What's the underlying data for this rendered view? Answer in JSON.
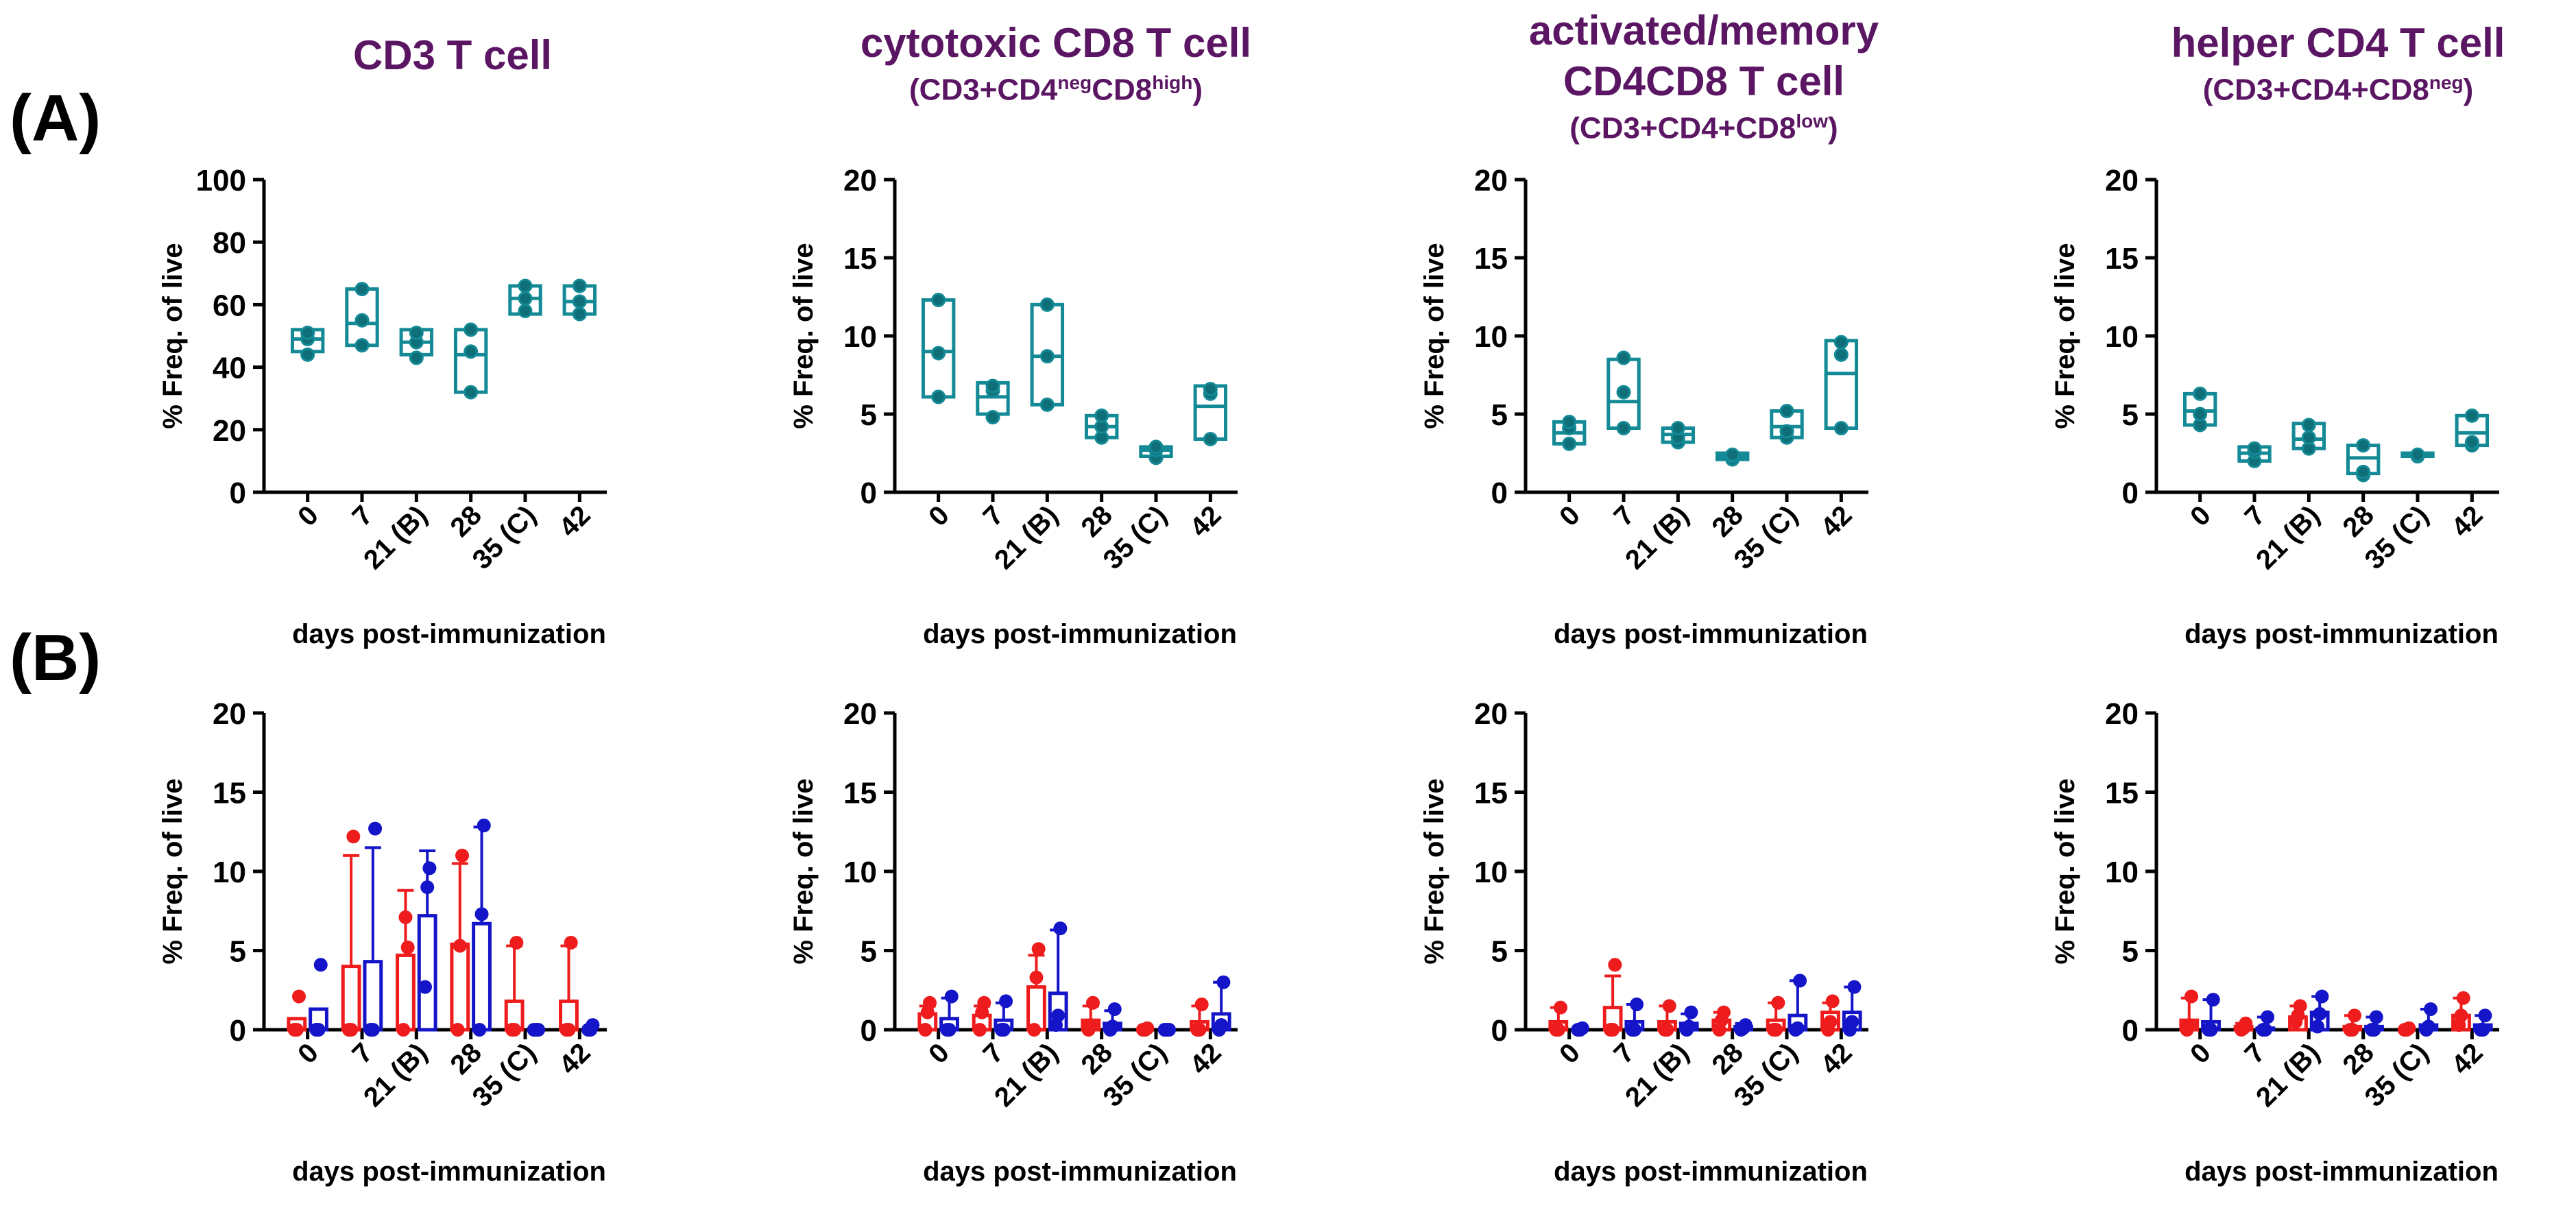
{
  "panel_labels": [
    "(A)",
    "(B)"
  ],
  "panel_titles": [
    {
      "main": "CD3 T cell",
      "sub": null
    },
    {
      "main": "cytotoxic CD8 T cell",
      "sub": {
        "pre": "(CD3+CD4",
        "sup1": "neg",
        "mid": "CD8",
        "sup2": "high",
        "post": ")"
      }
    },
    {
      "main": "activated/memory",
      "main2": "CD4CD8 T cell",
      "sub": {
        "pre": "(CD3+CD4+CD8",
        "sup1": "low",
        "mid": "",
        "sup2": "",
        "post": ")"
      }
    },
    {
      "main": "helper CD4 T cell",
      "sub": {
        "pre": "(CD3+CD4+CD8",
        "sup1": "neg",
        "mid": "",
        "sup2": "",
        "post": ")"
      }
    }
  ],
  "colors": {
    "title": "#5b1663",
    "teal": "#138a96",
    "red": "#ee1c1c",
    "blue": "#1414c8",
    "axis": "#000000"
  },
  "chart_data": [
    {
      "id": "A1",
      "type": "box",
      "row": "A",
      "title": "CD3 T cell",
      "ylabel": "% Freq. of live",
      "xlabel": "days post-immunization",
      "ylim": [
        0,
        100
      ],
      "yticks": [
        0,
        20,
        40,
        60,
        80,
        100
      ],
      "categories": [
        "0",
        "7",
        "21 (B)",
        "28",
        "35 (C)",
        "42"
      ],
      "series": [
        {
          "name": "CD3 T cell",
          "color": "#138a96",
          "boxes": [
            {
              "min": 45,
              "median": 49,
              "max": 52
            },
            {
              "min": 47,
              "median": 54,
              "max": 65
            },
            {
              "min": 44,
              "median": 48,
              "max": 52
            },
            {
              "min": 32,
              "median": 44,
              "max": 52
            },
            {
              "min": 57,
              "median": 62,
              "max": 66
            },
            {
              "min": 57,
              "median": 61,
              "max": 66
            }
          ],
          "points": [
            [
              44,
              49,
              51
            ],
            [
              47,
              55,
              65
            ],
            [
              43,
              48,
              51
            ],
            [
              32,
              45,
              52
            ],
            [
              58,
              62,
              66
            ],
            [
              57,
              61,
              66
            ]
          ]
        }
      ]
    },
    {
      "id": "A2",
      "type": "box",
      "row": "A",
      "title": "cytotoxic CD8 T cell",
      "ylabel": "% Freq. of live",
      "xlabel": "days post-immunization",
      "ylim": [
        0,
        20
      ],
      "yticks": [
        0,
        5,
        10,
        15,
        20
      ],
      "categories": [
        "0",
        "7",
        "21 (B)",
        "28",
        "35 (C)",
        "42"
      ],
      "series": [
        {
          "name": "cytotoxic CD8 T cell",
          "color": "#138a96",
          "boxes": [
            {
              "min": 6.1,
              "median": 9,
              "max": 12.3
            },
            {
              "min": 5,
              "median": 6.1,
              "max": 7
            },
            {
              "min": 5.6,
              "median": 8.7,
              "max": 12
            },
            {
              "min": 3.5,
              "median": 4.2,
              "max": 4.9
            },
            {
              "min": 2.3,
              "median": 2.7,
              "max": 2.9
            },
            {
              "min": 3.4,
              "median": 5.5,
              "max": 6.8
            }
          ],
          "points": [
            [
              6.1,
              8.9,
              12.3
            ],
            [
              4.8,
              6.5,
              6.8
            ],
            [
              5.6,
              8.7,
              12
            ],
            [
              3.5,
              4.2,
              4.9
            ],
            [
              2.2,
              2.7,
              2.9
            ],
            [
              3.4,
              6.3,
              6.6
            ]
          ]
        }
      ]
    },
    {
      "id": "A3",
      "type": "box",
      "row": "A",
      "title": "activated/memory CD4CD8 T cell",
      "ylabel": "% Freq. of live",
      "xlabel": "days post-immunization",
      "ylim": [
        0,
        20
      ],
      "yticks": [
        0,
        5,
        10,
        15,
        20
      ],
      "categories": [
        "0",
        "7",
        "21 (B)",
        "28",
        "35 (C)",
        "42"
      ],
      "series": [
        {
          "name": "activated/memory CD4CD8 T cell",
          "color": "#138a96",
          "boxes": [
            {
              "min": 3.1,
              "median": 3.8,
              "max": 4.5
            },
            {
              "min": 4.1,
              "median": 5.8,
              "max": 8.5
            },
            {
              "min": 3.2,
              "median": 3.7,
              "max": 4.1
            },
            {
              "min": 2.1,
              "median": 2.3,
              "max": 2.5
            },
            {
              "min": 3.5,
              "median": 4.2,
              "max": 5.2
            },
            {
              "min": 4.1,
              "median": 7.6,
              "max": 9.7
            }
          ],
          "points": [
            [
              3.1,
              4.1,
              4.5
            ],
            [
              4.1,
              6.4,
              8.6
            ],
            [
              3.2,
              3.5,
              4.1
            ],
            [
              2.1,
              2.3,
              2.4
            ],
            [
              3.5,
              3.9,
              5.2
            ],
            [
              4.1,
              8.8,
              9.6
            ]
          ]
        }
      ]
    },
    {
      "id": "A4",
      "type": "box",
      "row": "A",
      "title": "helper CD4 T cell",
      "ylabel": "% Freq. of live",
      "xlabel": "days post-immunization",
      "ylim": [
        0,
        20
      ],
      "yticks": [
        0,
        5,
        10,
        15,
        20
      ],
      "categories": [
        "0",
        "7",
        "21 (B)",
        "28",
        "35 (C)",
        "42"
      ],
      "series": [
        {
          "name": "helper CD4 T cell",
          "color": "#138a96",
          "boxes": [
            {
              "min": 4.3,
              "median": 5.2,
              "max": 6.3
            },
            {
              "min": 2,
              "median": 2.5,
              "max": 2.9
            },
            {
              "min": 2.8,
              "median": 3.4,
              "max": 4.4
            },
            {
              "min": 1.2,
              "median": 2.2,
              "max": 3
            },
            {
              "min": 2.3,
              "median": 2.4,
              "max": 2.5
            },
            {
              "min": 3,
              "median": 3.8,
              "max": 4.9
            }
          ],
          "points": [
            [
              4.3,
              5,
              6.3
            ],
            [
              2,
              2.6,
              2.8
            ],
            [
              2.8,
              3.5,
              4.3
            ],
            [
              1.1,
              1.3,
              3
            ],
            [
              2.3,
              2.4,
              2.4
            ],
            [
              3,
              3.2,
              4.9
            ]
          ]
        }
      ]
    },
    {
      "id": "B1",
      "type": "bar",
      "row": "B",
      "ylabel": "% Freq. of live",
      "xlabel": "days post-immunization",
      "ylim": [
        0,
        20
      ],
      "yticks": [
        0,
        5,
        10,
        15,
        20
      ],
      "categories": [
        "0",
        "7",
        "21 (B)",
        "28",
        "35 (C)",
        "42"
      ],
      "series": [
        {
          "name": "red",
          "color": "#ee1c1c",
          "values": [
            0.7,
            4,
            4.7,
            5.4,
            1.8,
            1.8
          ],
          "err": [
            0,
            11,
            8.8,
            10.5,
            5.3,
            5.3
          ],
          "points": [
            [
              0,
              0,
              2.1
            ],
            [
              0,
              0,
              12.2
            ],
            [
              0,
              7.1,
              5.2
            ],
            [
              0,
              5.3,
              11
            ],
            [
              0,
              0,
              5.5
            ],
            [
              0,
              0,
              5.5
            ]
          ]
        },
        {
          "name": "blue",
          "color": "#1414c8",
          "values": [
            1.3,
            4.3,
            7.2,
            6.7,
            0,
            0
          ],
          "err": [
            1.3,
            11.5,
            11.3,
            12.8,
            0,
            0
          ],
          "points": [
            [
              0,
              0,
              4.1
            ],
            [
              0,
              0,
              12.7
            ],
            [
              2.7,
              9,
              10.2
            ],
            [
              0,
              7.3,
              12.9
            ],
            [
              0,
              0,
              0
            ],
            [
              0,
              0,
              0.3
            ]
          ]
        }
      ]
    },
    {
      "id": "B2",
      "type": "bar",
      "row": "B",
      "ylabel": "% Freq. of live",
      "xlabel": "days post-immunization",
      "ylim": [
        0,
        20
      ],
      "yticks": [
        0,
        5,
        10,
        15,
        20
      ],
      "categories": [
        "0",
        "7",
        "21 (B)",
        "28",
        "35 (C)",
        "42"
      ],
      "series": [
        {
          "name": "red",
          "color": "#ee1c1c",
          "values": [
            1,
            0.9,
            2.7,
            0.6,
            0,
            0.5
          ],
          "err": [
            1.5,
            1.5,
            4.7,
            1.5,
            0,
            1.5
          ],
          "points": [
            [
              0,
              1.1,
              1.7
            ],
            [
              0,
              1.1,
              1.7
            ],
            [
              0,
              3.3,
              5.1
            ],
            [
              0,
              0.3,
              1.7
            ],
            [
              0,
              0,
              0.1
            ],
            [
              0,
              0,
              1.6
            ]
          ]
        },
        {
          "name": "blue",
          "color": "#1414c8",
          "values": [
            0.7,
            0.6,
            2.3,
            0.4,
            0,
            1
          ],
          "err": [
            2,
            1.7,
            6.3,
            1.2,
            0,
            3
          ],
          "points": [
            [
              0,
              0,
              2.1
            ],
            [
              0,
              0,
              1.8
            ],
            [
              0.3,
              0.9,
              6.4
            ],
            [
              0,
              0.2,
              1.3
            ],
            [
              0,
              0,
              0
            ],
            [
              0,
              0.3,
              3
            ]
          ]
        }
      ]
    },
    {
      "id": "B3",
      "type": "bar",
      "row": "B",
      "ylabel": "% Freq. of live",
      "xlabel": "days post-immunization",
      "ylim": [
        0,
        20
      ],
      "yticks": [
        0,
        5,
        10,
        15,
        20
      ],
      "categories": [
        "0",
        "7",
        "21 (B)",
        "28",
        "35 (C)",
        "42"
      ],
      "series": [
        {
          "name": "red",
          "color": "#ee1c1c",
          "values": [
            0.5,
            1.4,
            0.5,
            0.6,
            0.6,
            1.1
          ],
          "err": [
            1.4,
            3.4,
            1.5,
            1.1,
            1.7,
            1.7
          ],
          "points": [
            [
              0,
              0,
              1.4
            ],
            [
              0,
              0,
              4.1
            ],
            [
              0,
              0,
              1.5
            ],
            [
              0,
              0.6,
              1.1
            ],
            [
              0,
              0,
              1.7
            ],
            [
              0,
              0.5,
              1.8
            ]
          ]
        },
        {
          "name": "blue",
          "color": "#1414c8",
          "values": [
            0,
            0.5,
            0.4,
            0.2,
            0.9,
            1.1
          ],
          "err": [
            0,
            1.6,
            1,
            0.4,
            3.1,
            2.7
          ],
          "points": [
            [
              0,
              0,
              0.1
            ],
            [
              0,
              0,
              1.6
            ],
            [
              0,
              0.2,
              1.1
            ],
            [
              0,
              0.1,
              0.3
            ],
            [
              0,
              0.1,
              3.1
            ],
            [
              0,
              0.5,
              2.7
            ]
          ]
        }
      ]
    },
    {
      "id": "B4",
      "type": "bar",
      "row": "B",
      "ylabel": "% Freq. of live",
      "xlabel": "days post-immunization",
      "ylim": [
        0,
        20
      ],
      "yticks": [
        0,
        5,
        10,
        15,
        20
      ],
      "categories": [
        "0",
        "7",
        "21 (B)",
        "28",
        "35 (C)",
        "42"
      ],
      "series": [
        {
          "name": "red",
          "color": "#ee1c1c",
          "values": [
            0.6,
            0.2,
            0.8,
            0.2,
            0,
            0.9
          ],
          "err": [
            2,
            0.4,
            1.5,
            0.9,
            0,
            2
          ],
          "points": [
            [
              0,
              0.3,
              2.1
            ],
            [
              0,
              0.1,
              0.4
            ],
            [
              0.5,
              0.9,
              1.5
            ],
            [
              0,
              0,
              0.9
            ],
            [
              0,
              0,
              0.1
            ],
            [
              0.3,
              0.9,
              2
            ]
          ]
        },
        {
          "name": "blue",
          "color": "#1414c8",
          "values": [
            0.5,
            0.1,
            1.1,
            0.2,
            0.3,
            0.3
          ],
          "err": [
            1.9,
            0.8,
            2.1,
            0.8,
            1.3,
            0.9
          ],
          "points": [
            [
              0,
              0,
              1.9
            ],
            [
              0,
              0,
              0.8
            ],
            [
              0.2,
              1,
              2.1
            ],
            [
              0,
              0,
              0.8
            ],
            [
              0,
              0.2,
              1.3
            ],
            [
              0,
              0,
              0.9
            ]
          ]
        }
      ]
    }
  ]
}
